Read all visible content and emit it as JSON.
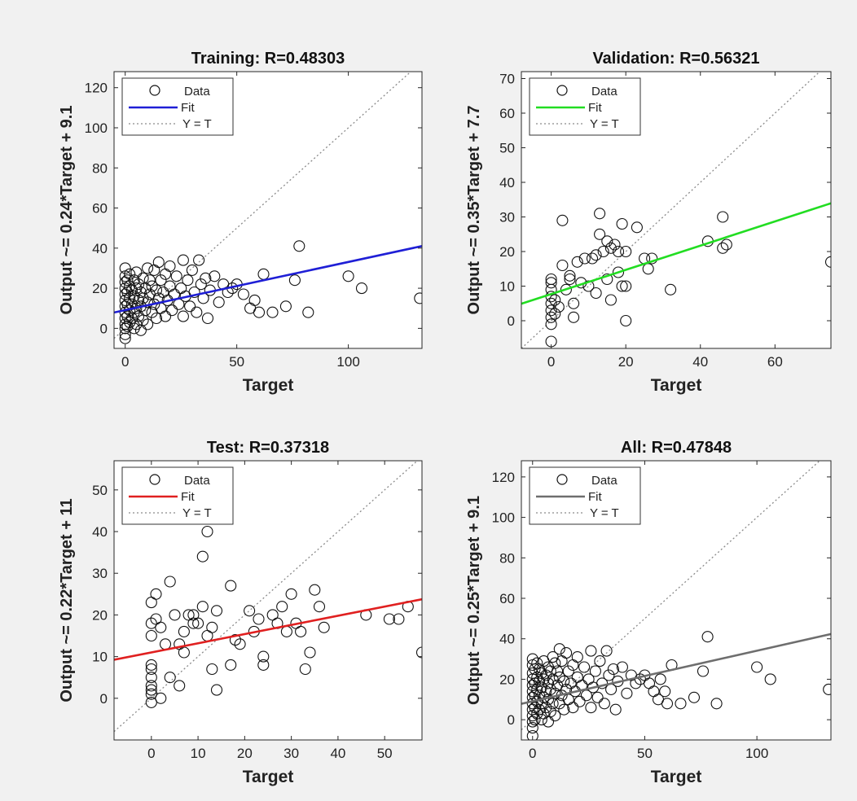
{
  "chart_data": [
    {
      "type": "scatter",
      "title": "Training: R=0.48303",
      "xlabel": "Target",
      "ylabel": "Output ~= 0.24*Target + 9.1",
      "xlim": [
        -5,
        133
      ],
      "ylim": [
        -10,
        128
      ],
      "xticks": [
        0,
        50,
        100
      ],
      "yticks": [
        0,
        20,
        40,
        60,
        80,
        100,
        120
      ],
      "fit": {
        "slope": 0.24,
        "intercept": 9.1,
        "color": "#1f1fd6"
      },
      "legend": {
        "placement": "top-left",
        "data": "Data",
        "fit": "Fit",
        "identity": "Y = T"
      },
      "points": [
        [
          0,
          -5
        ],
        [
          0,
          -3
        ],
        [
          0,
          0
        ],
        [
          0,
          2
        ],
        [
          0,
          5
        ],
        [
          0,
          8
        ],
        [
          0,
          11
        ],
        [
          0,
          14
        ],
        [
          0,
          17
        ],
        [
          0,
          20
        ],
        [
          0,
          23
        ],
        [
          0,
          26
        ],
        [
          0,
          30
        ],
        [
          1,
          1
        ],
        [
          1,
          6
        ],
        [
          1,
          12
        ],
        [
          1,
          18
        ],
        [
          1,
          24
        ],
        [
          2,
          3
        ],
        [
          2,
          9
        ],
        [
          2,
          15
        ],
        [
          2,
          21
        ],
        [
          2,
          27
        ],
        [
          3,
          5
        ],
        [
          3,
          12
        ],
        [
          3,
          19
        ],
        [
          4,
          0
        ],
        [
          4,
          8
        ],
        [
          4,
          16
        ],
        [
          4,
          24
        ],
        [
          5,
          2
        ],
        [
          5,
          10
        ],
        [
          5,
          20
        ],
        [
          5,
          28
        ],
        [
          6,
          6
        ],
        [
          6,
          14
        ],
        [
          6,
          22
        ],
        [
          7,
          -1
        ],
        [
          7,
          11
        ],
        [
          7,
          18
        ],
        [
          8,
          4
        ],
        [
          8,
          15
        ],
        [
          8,
          25
        ],
        [
          9,
          9
        ],
        [
          9,
          20
        ],
        [
          10,
          2
        ],
        [
          10,
          13
        ],
        [
          10,
          30
        ],
        [
          11,
          17
        ],
        [
          11,
          24
        ],
        [
          12,
          8
        ],
        [
          12,
          21
        ],
        [
          13,
          12
        ],
        [
          13,
          29
        ],
        [
          14,
          5
        ],
        [
          14,
          19
        ],
        [
          15,
          15
        ],
        [
          15,
          33
        ],
        [
          16,
          10
        ],
        [
          16,
          24
        ],
        [
          17,
          18
        ],
        [
          18,
          6
        ],
        [
          18,
          27
        ],
        [
          19,
          14
        ],
        [
          20,
          21
        ],
        [
          20,
          31
        ],
        [
          21,
          9
        ],
        [
          22,
          17
        ],
        [
          23,
          26
        ],
        [
          24,
          12
        ],
        [
          25,
          20
        ],
        [
          26,
          6
        ],
        [
          26,
          34
        ],
        [
          27,
          16
        ],
        [
          28,
          24
        ],
        [
          29,
          11
        ],
        [
          30,
          29
        ],
        [
          31,
          18
        ],
        [
          32,
          8
        ],
        [
          33,
          34
        ],
        [
          34,
          22
        ],
        [
          35,
          15
        ],
        [
          36,
          25
        ],
        [
          37,
          5
        ],
        [
          38,
          19
        ],
        [
          40,
          26
        ],
        [
          42,
          13
        ],
        [
          44,
          22
        ],
        [
          46,
          18
        ],
        [
          48,
          20
        ],
        [
          50,
          22
        ],
        [
          53,
          17
        ],
        [
          56,
          10
        ],
        [
          58,
          14
        ],
        [
          60,
          8
        ],
        [
          62,
          27
        ],
        [
          66,
          8
        ],
        [
          72,
          11
        ],
        [
          76,
          24
        ],
        [
          78,
          41
        ],
        [
          82,
          8
        ],
        [
          100,
          26
        ],
        [
          106,
          20
        ],
        [
          132,
          15
        ]
      ]
    },
    {
      "type": "scatter",
      "title": "Validation: R=0.56321",
      "xlabel": "Target",
      "ylabel": "Output ~= 0.35*Target + 7.7",
      "xlim": [
        -8,
        75
      ],
      "ylim": [
        -8,
        72
      ],
      "xticks": [
        0,
        20,
        40,
        60
      ],
      "yticks": [
        0,
        10,
        20,
        30,
        40,
        50,
        60,
        70
      ],
      "fit": {
        "slope": 0.35,
        "intercept": 7.7,
        "color": "#22dd22"
      },
      "legend": {
        "placement": "top-left",
        "data": "Data",
        "fit": "Fit",
        "identity": "Y = T"
      },
      "points": [
        [
          0,
          -6
        ],
        [
          0,
          -1
        ],
        [
          0,
          1
        ],
        [
          0,
          3
        ],
        [
          0,
          5
        ],
        [
          0,
          7
        ],
        [
          0,
          9
        ],
        [
          0,
          11
        ],
        [
          0,
          12
        ],
        [
          1,
          2
        ],
        [
          1,
          6
        ],
        [
          2,
          4
        ],
        [
          3,
          16
        ],
        [
          3,
          29
        ],
        [
          4,
          9
        ],
        [
          5,
          13
        ],
        [
          5,
          12
        ],
        [
          6,
          1
        ],
        [
          6,
          5
        ],
        [
          7,
          17
        ],
        [
          8,
          11
        ],
        [
          9,
          18
        ],
        [
          10,
          10
        ],
        [
          11,
          18
        ],
        [
          12,
          8
        ],
        [
          12,
          19
        ],
        [
          13,
          31
        ],
        [
          13,
          25
        ],
        [
          14,
          20
        ],
        [
          15,
          23
        ],
        [
          15,
          12
        ],
        [
          16,
          6
        ],
        [
          16,
          21
        ],
        [
          17,
          22
        ],
        [
          18,
          20
        ],
        [
          18,
          14
        ],
        [
          19,
          28
        ],
        [
          19,
          10
        ],
        [
          20,
          20
        ],
        [
          20,
          0
        ],
        [
          20,
          10
        ],
        [
          23,
          27
        ],
        [
          25,
          18
        ],
        [
          26,
          15
        ],
        [
          27,
          18
        ],
        [
          32,
          9
        ],
        [
          42,
          23
        ],
        [
          46,
          21
        ],
        [
          46,
          30
        ],
        [
          47,
          22
        ],
        [
          75,
          17
        ]
      ]
    },
    {
      "type": "scatter",
      "title": "Test: R=0.37318",
      "xlabel": "Target",
      "ylabel": "Output ~= 0.22*Target + 11",
      "xlim": [
        -8,
        58
      ],
      "ylim": [
        -10,
        57
      ],
      "xticks": [
        0,
        10,
        20,
        30,
        40,
        50
      ],
      "yticks": [
        0,
        10,
        20,
        30,
        40,
        50
      ],
      "fit": {
        "slope": 0.22,
        "intercept": 11,
        "color": "#e02020"
      },
      "legend": {
        "placement": "top-left",
        "data": "Data",
        "fit": "Fit",
        "identity": "Y = T"
      },
      "points": [
        [
          0,
          -1
        ],
        [
          0,
          1
        ],
        [
          0,
          2
        ],
        [
          0,
          3
        ],
        [
          0,
          5
        ],
        [
          0,
          7
        ],
        [
          0,
          8
        ],
        [
          0,
          15
        ],
        [
          0,
          18
        ],
        [
          0,
          23
        ],
        [
          1,
          25
        ],
        [
          1,
          19
        ],
        [
          2,
          17
        ],
        [
          2,
          0
        ],
        [
          3,
          13
        ],
        [
          4,
          5
        ],
        [
          4,
          28
        ],
        [
          5,
          20
        ],
        [
          6,
          13
        ],
        [
          6,
          3
        ],
        [
          7,
          11
        ],
        [
          7,
          16
        ],
        [
          8,
          20
        ],
        [
          9,
          18
        ],
        [
          9,
          20
        ],
        [
          10,
          18
        ],
        [
          11,
          22
        ],
        [
          11,
          34
        ],
        [
          12,
          40
        ],
        [
          12,
          15
        ],
        [
          13,
          17
        ],
        [
          13,
          7
        ],
        [
          14,
          2
        ],
        [
          14,
          21
        ],
        [
          17,
          27
        ],
        [
          17,
          8
        ],
        [
          18,
          14
        ],
        [
          19,
          13
        ],
        [
          21,
          21
        ],
        [
          22,
          16
        ],
        [
          23,
          19
        ],
        [
          24,
          10
        ],
        [
          24,
          8
        ],
        [
          26,
          20
        ],
        [
          27,
          18
        ],
        [
          28,
          22
        ],
        [
          29,
          16
        ],
        [
          30,
          25
        ],
        [
          31,
          18
        ],
        [
          32,
          16
        ],
        [
          33,
          7
        ],
        [
          34,
          11
        ],
        [
          35,
          26
        ],
        [
          36,
          22
        ],
        [
          37,
          17
        ],
        [
          46,
          20
        ],
        [
          51,
          19
        ],
        [
          53,
          19
        ],
        [
          55,
          22
        ],
        [
          58,
          11
        ]
      ]
    },
    {
      "type": "scatter",
      "title": "All: R=0.47848",
      "xlabel": "Target",
      "ylabel": "Output ~= 0.25*Target + 9.1",
      "xlim": [
        -5,
        133
      ],
      "ylim": [
        -10,
        128
      ],
      "xticks": [
        0,
        50,
        100
      ],
      "yticks": [
        0,
        20,
        40,
        60,
        80,
        100,
        120
      ],
      "fit": {
        "slope": 0.25,
        "intercept": 9.1,
        "color": "#6e6e6e"
      },
      "legend": {
        "placement": "top-left",
        "data": "Data",
        "fit": "Fit",
        "identity": "Y = T"
      },
      "points": [
        [
          0,
          -8
        ],
        [
          0,
          -4
        ],
        [
          0,
          -1
        ],
        [
          0,
          2
        ],
        [
          0,
          5
        ],
        [
          0,
          8
        ],
        [
          0,
          11
        ],
        [
          0,
          14
        ],
        [
          0,
          17
        ],
        [
          0,
          20
        ],
        [
          0,
          23
        ],
        [
          0,
          27
        ],
        [
          0,
          30
        ],
        [
          1,
          0
        ],
        [
          1,
          6
        ],
        [
          1,
          12
        ],
        [
          1,
          18
        ],
        [
          1,
          25
        ],
        [
          2,
          3
        ],
        [
          2,
          9
        ],
        [
          2,
          15
        ],
        [
          2,
          21
        ],
        [
          2,
          28
        ],
        [
          3,
          5
        ],
        [
          3,
          12
        ],
        [
          3,
          19
        ],
        [
          3,
          25
        ],
        [
          4,
          0
        ],
        [
          4,
          8
        ],
        [
          4,
          16
        ],
        [
          4,
          23
        ],
        [
          5,
          3
        ],
        [
          5,
          11
        ],
        [
          5,
          20
        ],
        [
          5,
          29
        ],
        [
          6,
          6
        ],
        [
          6,
          14
        ],
        [
          6,
          22
        ],
        [
          7,
          -1
        ],
        [
          7,
          10
        ],
        [
          7,
          18
        ],
        [
          7,
          26
        ],
        [
          8,
          4
        ],
        [
          8,
          15
        ],
        [
          8,
          24
        ],
        [
          9,
          8
        ],
        [
          9,
          20
        ],
        [
          9,
          31
        ],
        [
          10,
          2
        ],
        [
          10,
          13
        ],
        [
          10,
          28
        ],
        [
          11,
          17
        ],
        [
          11,
          24
        ],
        [
          12,
          8
        ],
        [
          12,
          21
        ],
        [
          12,
          35
        ],
        [
          13,
          12
        ],
        [
          13,
          29
        ],
        [
          14,
          5
        ],
        [
          14,
          19
        ],
        [
          15,
          15
        ],
        [
          15,
          33
        ],
        [
          16,
          10
        ],
        [
          16,
          24
        ],
        [
          17,
          18
        ],
        [
          18,
          6
        ],
        [
          18,
          27
        ],
        [
          19,
          14
        ],
        [
          20,
          21
        ],
        [
          20,
          31
        ],
        [
          21,
          9
        ],
        [
          22,
          17
        ],
        [
          23,
          26
        ],
        [
          24,
          12
        ],
        [
          25,
          20
        ],
        [
          26,
          6
        ],
        [
          26,
          34
        ],
        [
          27,
          16
        ],
        [
          28,
          24
        ],
        [
          29,
          11
        ],
        [
          30,
          29
        ],
        [
          31,
          18
        ],
        [
          32,
          8
        ],
        [
          33,
          34
        ],
        [
          34,
          22
        ],
        [
          35,
          15
        ],
        [
          36,
          25
        ],
        [
          37,
          5
        ],
        [
          38,
          19
        ],
        [
          40,
          26
        ],
        [
          42,
          13
        ],
        [
          44,
          22
        ],
        [
          46,
          18
        ],
        [
          48,
          20
        ],
        [
          50,
          22
        ],
        [
          52,
          18
        ],
        [
          54,
          14
        ],
        [
          56,
          10
        ],
        [
          57,
          20
        ],
        [
          59,
          14
        ],
        [
          60,
          8
        ],
        [
          62,
          27
        ],
        [
          66,
          8
        ],
        [
          72,
          11
        ],
        [
          76,
          24
        ],
        [
          78,
          41
        ],
        [
          82,
          8
        ],
        [
          100,
          26
        ],
        [
          106,
          20
        ],
        [
          132,
          15
        ]
      ]
    }
  ]
}
